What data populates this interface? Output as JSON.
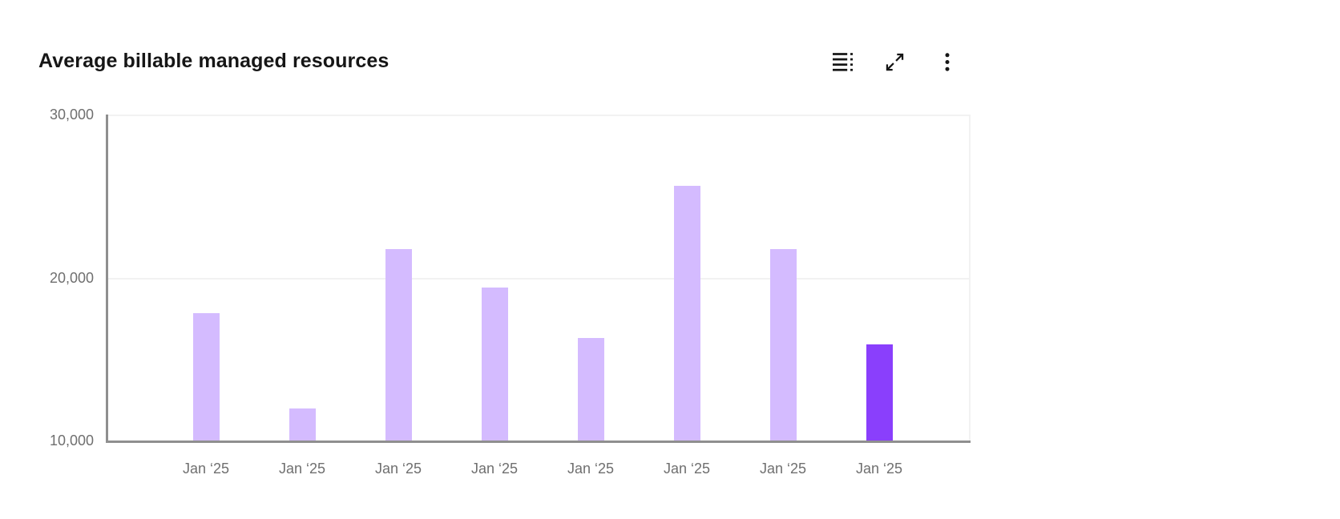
{
  "header": {
    "title": "Average billable managed resources",
    "icons": [
      "data-table-icon",
      "maximize-icon",
      "overflow-menu-icon"
    ]
  },
  "chart_data": {
    "type": "bar",
    "title": "Average billable managed resources",
    "categories": [
      "Jan ‘25",
      "Jan ‘25",
      "Jan ‘25",
      "Jan ‘25",
      "Jan ‘25",
      "Jan ‘25",
      "Jan ‘25",
      "Jan ‘25"
    ],
    "values": [
      17800,
      11950,
      21750,
      19400,
      16300,
      25650,
      21750,
      15900
    ],
    "highlight_index": 7,
    "xlabel": "",
    "ylabel": "",
    "ylim": [
      10000,
      30000
    ],
    "yticks": [
      {
        "label": "10,000",
        "value": 10000
      },
      {
        "label": "20,000",
        "value": 20000
      },
      {
        "label": "30,000",
        "value": 30000
      }
    ],
    "grid": "horizontal",
    "legend": "none",
    "colors": {
      "bar": "#d4bbff",
      "bar_highlight": "#8a3ffc",
      "axis_line": "#8f8f8f",
      "gridline": "#f2f2f2",
      "tick_label": "#6f6f6f",
      "title": "#161616"
    }
  }
}
